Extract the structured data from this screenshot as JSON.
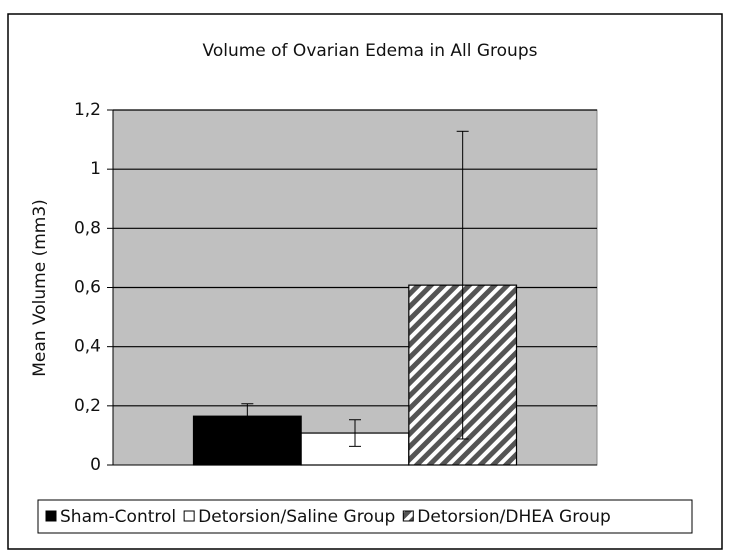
{
  "chart_data": {
    "type": "bar",
    "title": "Volume of Ovarian Edema in All Groups",
    "y_label": "Mean Volume (mm3)",
    "categories": [
      null
    ],
    "series": [
      {
        "name": "Sham-Control",
        "color": "#000000",
        "values": [
          0.165
        ],
        "errors": [
          0.042
        ]
      },
      {
        "name": "Detorsion/Saline Group",
        "color": "#ffffff",
        "values": [
          0.108
        ],
        "errors": [
          0.045
        ]
      },
      {
        "name": "Detorsion/DHEA Group",
        "color": "#555555",
        "pattern": "diagonal-hatch",
        "values": [
          0.608
        ],
        "errors": [
          0.52
        ]
      }
    ],
    "ylim": [
      0,
      1.2
    ],
    "yticks": [
      0,
      {
        "value": 0.2,
        "label": "0,2"
      },
      {
        "value": 0.4,
        "label": "0,4"
      },
      {
        "value": 0.6,
        "label": "0,6"
      },
      {
        "value": 0.8,
        "label": "0,8"
      },
      1,
      {
        "value": 1.2,
        "label": "1,2"
      }
    ],
    "grid": true,
    "legend": "bottom"
  }
}
